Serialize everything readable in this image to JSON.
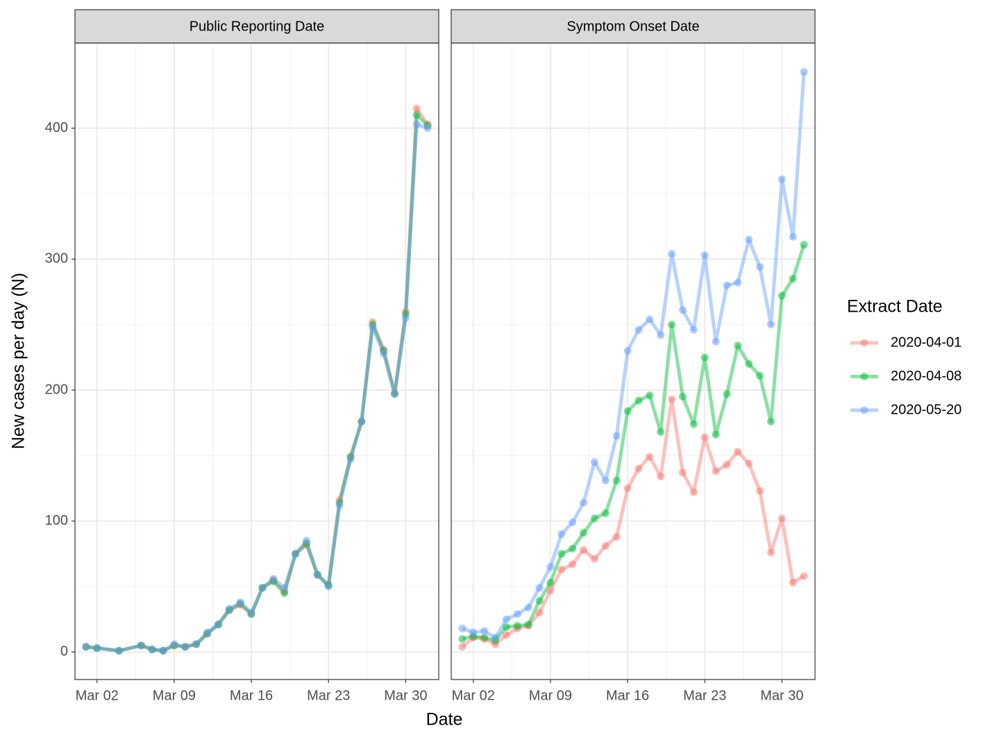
{
  "chart_data": [
    {
      "type": "line",
      "title": "Public Reporting Date",
      "xlabel": "Date",
      "ylabel": "New cases per day (N)",
      "legend_title": "Extract Date",
      "x": [
        "Mar 01",
        "Mar 02",
        "Mar 04",
        "Mar 06",
        "Mar 07",
        "Mar 08",
        "Mar 09",
        "Mar 10",
        "Mar 11",
        "Mar 12",
        "Mar 13",
        "Mar 14",
        "Mar 15",
        "Mar 16",
        "Mar 17",
        "Mar 18",
        "Mar 19",
        "Mar 20",
        "Mar 21",
        "Mar 22",
        "Mar 23",
        "Mar 24",
        "Mar 25",
        "Mar 26",
        "Mar 27",
        "Mar 28",
        "Mar 29",
        "Mar 30",
        "Mar 31",
        "Apr 01"
      ],
      "series": [
        {
          "name": "2020-04-01",
          "color": "#F8766D",
          "values": [
            4,
            3,
            1,
            5,
            2,
            1,
            5,
            4,
            6,
            14,
            21,
            32,
            36,
            29,
            49,
            55,
            46,
            75,
            82,
            59,
            51,
            116,
            149,
            176,
            252,
            231,
            198,
            260,
            415,
            403
          ]
        },
        {
          "name": "2020-04-08",
          "color": "#00BA38",
          "values": [
            4,
            3,
            1,
            5,
            2,
            1,
            5,
            4,
            6,
            14,
            21,
            32,
            37,
            29,
            49,
            54,
            45,
            75,
            83,
            59,
            51,
            114,
            149,
            176,
            250,
            230,
            197,
            258,
            410,
            402
          ]
        },
        {
          "name": "2020-05-20",
          "color": "#619CFF",
          "values": [
            4,
            3,
            1,
            5,
            2,
            1,
            6,
            4,
            6,
            15,
            21,
            33,
            38,
            30,
            49,
            56,
            49,
            75,
            85,
            59,
            50,
            112,
            147,
            176,
            248,
            228,
            197,
            255,
            403,
            400
          ]
        }
      ],
      "xlim": [
        "Feb 29",
        "Apr 02"
      ],
      "xticks": [
        "Mar 02",
        "Mar 09",
        "Mar 16",
        "Mar 23",
        "Mar 30"
      ],
      "ylim": [
        -21,
        465
      ],
      "yticks": [
        0,
        100,
        200,
        300,
        400
      ],
      "grid": true
    },
    {
      "type": "line",
      "title": "Symptom Onset Date",
      "x": [
        "Mar 01",
        "Mar 02",
        "Mar 03",
        "Mar 04",
        "Mar 05",
        "Mar 06",
        "Mar 07",
        "Mar 08",
        "Mar 09",
        "Mar 10",
        "Mar 11",
        "Mar 12",
        "Mar 13",
        "Mar 14",
        "Mar 15",
        "Mar 16",
        "Mar 17",
        "Mar 18",
        "Mar 19",
        "Mar 20",
        "Mar 21",
        "Mar 22",
        "Mar 23",
        "Mar 24",
        "Mar 25",
        "Mar 26",
        "Mar 27",
        "Mar 28",
        "Mar 29",
        "Mar 30",
        "Mar 31",
        "Apr 01"
      ],
      "series": [
        {
          "color": "#F8766D",
          "values": [
            4,
            11,
            10,
            6,
            13,
            18,
            20,
            30,
            47,
            63,
            67,
            78,
            71,
            81,
            88,
            125,
            140,
            149,
            134,
            193,
            137,
            122,
            164,
            138,
            143,
            153,
            144,
            123,
            76,
            102,
            53,
            58
          ]
        },
        {
          "color": "#00BA38",
          "values": [
            10,
            12,
            11,
            9,
            19,
            20,
            21,
            39,
            53,
            75,
            79,
            91,
            102,
            106,
            131,
            184,
            192,
            196,
            168,
            250,
            195,
            174,
            225,
            166,
            197,
            234,
            220,
            211,
            176,
            272,
            285,
            311
          ]
        },
        {
          "color": "#619CFF",
          "values": [
            18,
            15,
            16,
            11,
            25,
            29,
            34,
            49,
            65,
            90,
            99,
            114,
            145,
            131,
            165,
            230,
            246,
            254,
            242,
            304,
            261,
            246,
            303,
            237,
            280,
            282,
            315,
            294,
            250,
            361,
            317,
            443
          ]
        }
      ],
      "xlim": [
        "Feb 29",
        "Apr 02"
      ],
      "xticks": [
        "Mar 02",
        "Mar 09",
        "Mar 16",
        "Mar 23",
        "Mar 30"
      ],
      "ylim": [
        -21,
        465
      ],
      "yticks": [
        0,
        100,
        200,
        300,
        400
      ],
      "grid": true
    }
  ]
}
